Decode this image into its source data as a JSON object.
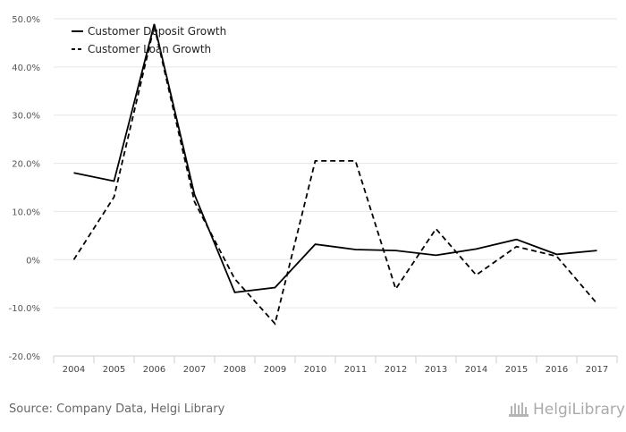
{
  "chart_data": {
    "type": "line",
    "categories": [
      "2004",
      "2005",
      "2006",
      "2007",
      "2008",
      "2009",
      "2010",
      "2011",
      "2012",
      "2013",
      "2014",
      "2015",
      "2016",
      "2017"
    ],
    "series": [
      {
        "name": "Customer Deposit Growth",
        "style": "solid",
        "color": "#000000",
        "values": [
          18.0,
          16.3,
          48.9,
          13.5,
          -6.8,
          -5.8,
          3.2,
          2.1,
          1.9,
          0.9,
          2.2,
          4.2,
          1.1,
          1.9
        ]
      },
      {
        "name": "Customer Loan Growth",
        "style": "dashed",
        "color": "#000000",
        "values": [
          0.0,
          13.0,
          48.5,
          12.0,
          -4.0,
          -13.3,
          20.5,
          20.5,
          -6.1,
          6.4,
          -3.2,
          2.7,
          0.7,
          -9.1
        ]
      }
    ],
    "ylim": [
      -20,
      50
    ],
    "yticks": [
      -20,
      -10,
      0,
      10,
      20,
      30,
      40,
      50
    ],
    "ytick_labels": [
      "-20.0%",
      "-10.0%",
      "0%",
      "10.0%",
      "20.0%",
      "30.0%",
      "40.0%",
      "50.0%"
    ],
    "grid": true,
    "legend_position": "top-left",
    "title": "",
    "xlabel": "",
    "ylabel": ""
  },
  "footer": {
    "source": "Source: Company Data, Helgi Library",
    "logo_text": "HelgiLibrary"
  }
}
